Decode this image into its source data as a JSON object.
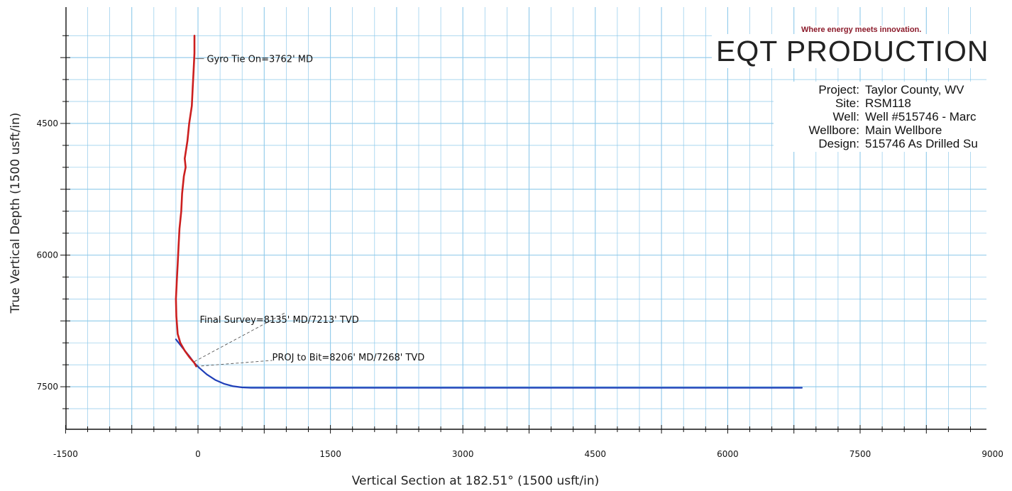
{
  "branding": {
    "tagline": "Where energy meets innovation.",
    "company": "EQT PRODUCTION"
  },
  "info": {
    "rows": [
      {
        "key": "Project:",
        "value": "Taylor County, WV"
      },
      {
        "key": "Site:",
        "value": "RSM118"
      },
      {
        "key": "Well:",
        "value": "Well #515746 - Marc"
      },
      {
        "key": "Wellbore:",
        "value": "Main Wellbore"
      },
      {
        "key": "Design:",
        "value": "515746 As Drilled Su"
      }
    ]
  },
  "colors": {
    "grid": "#8ec9ea",
    "survey": "#cc1f1f",
    "design": "#1f3fb8",
    "axis": "#111111"
  },
  "chart_data": {
    "type": "line",
    "xlabel": "Vertical Section at 182.51° (1500 usft/in)",
    "ylabel": "True Vertical Depth (1500 usft/in)",
    "xlim": [
      -1500,
      9000
    ],
    "ylim": [
      7950,
      3450
    ],
    "x_ticks": [
      -1500,
      0,
      1500,
      3000,
      4500,
      6000,
      7500,
      9000
    ],
    "y_ticks": [
      4500,
      6000,
      7500
    ],
    "grid": true,
    "series": [
      {
        "color_key": "design",
        "x": [
          -250,
          -180,
          -100,
          -40,
          20,
          100,
          200,
          300,
          400,
          500,
          600,
          6840
        ],
        "y": [
          6960,
          7050,
          7150,
          7230,
          7290,
          7360,
          7425,
          7468,
          7495,
          7508,
          7512,
          7512
        ]
      },
      {
        "color_key": "survey",
        "x": [
          -40,
          -40,
          -50,
          -60,
          -70,
          -100,
          -120,
          -150,
          -140,
          -160,
          -180,
          -190,
          -210,
          -220,
          -230,
          -240,
          -250,
          -245,
          -230,
          -200,
          -150,
          -100,
          -40,
          -20
        ],
        "y": [
          3500,
          3700,
          3900,
          4100,
          4300,
          4500,
          4700,
          4900,
          5000,
          5100,
          5300,
          5500,
          5700,
          5900,
          6100,
          6300,
          6500,
          6700,
          6900,
          7000,
          7090,
          7160,
          7230,
          7268
        ]
      }
    ],
    "annotations": [
      {
        "label": "Gyro Tie On=3762' MD",
        "x": -30,
        "y": 3762,
        "tx": 100,
        "ty": 3762,
        "dashed": false
      },
      {
        "label": "Final Survey=8135' MD/7213' TVD",
        "x": -40,
        "y": 7213,
        "tx": 20,
        "ty": 6730,
        "dashed": true,
        "leader_end": [
          1000,
          6650
        ]
      },
      {
        "label": "PROJ to Bit=8206' MD/7268' TVD",
        "x": -20,
        "y": 7268,
        "tx": 840,
        "ty": 7160,
        "dashed": true,
        "leader_end": [
          840,
          7200
        ]
      }
    ]
  }
}
